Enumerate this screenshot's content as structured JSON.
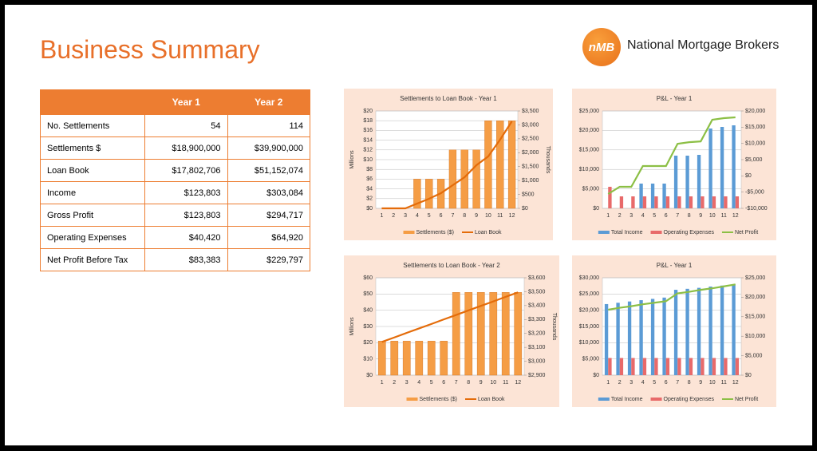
{
  "header": {
    "title": "Business Summary",
    "logo": {
      "mark": "nMB",
      "name": "National Mortgage Brokers"
    }
  },
  "table": {
    "columns": [
      "Year 1",
      "Year 2"
    ],
    "rows": [
      [
        "No. Settlements",
        "54",
        "114"
      ],
      [
        "Settlements $",
        "$18,900,000",
        "$39,900,000"
      ],
      [
        "Loan Book",
        "$17,802,706",
        "$51,152,074"
      ],
      [
        "Income",
        "$123,803",
        "$303,084"
      ],
      [
        "Gross Profit",
        "$123,803",
        "$294,717"
      ],
      [
        "Operating Expenses",
        "$40,420",
        "$64,920"
      ],
      [
        "Net Profit Before Tax",
        "$83,383",
        "$229,797"
      ]
    ]
  },
  "chart_data": [
    {
      "type": "bar_line",
      "title": "Settlements to Loan Book - Year 1",
      "y_label": "Millions",
      "y2_label": "Thousands",
      "grid": true,
      "categories": [
        1,
        2,
        3,
        4,
        5,
        6,
        7,
        8,
        9,
        10,
        11,
        12
      ],
      "series": [
        {
          "name": "Settlements ($)",
          "type": "bar",
          "color": "#f59d45",
          "values": [
            0,
            0,
            0,
            6,
            6,
            6,
            12,
            12,
            12,
            18,
            18,
            18
          ]
        },
        {
          "name": "Loan Book",
          "type": "line",
          "axis": "y2",
          "color": "#e46c0a",
          "values": [
            0,
            0,
            0,
            172,
            344,
            545,
            832,
            1119,
            1549,
            1865,
            2467,
            3127
          ]
        }
      ],
      "ylim": [
        0,
        20
      ],
      "yticks": [
        {
          "value": 0,
          "label": "$0"
        },
        {
          "value": 2,
          "label": "$2"
        },
        {
          "value": 4,
          "label": "$4"
        },
        {
          "value": 6,
          "label": "$6"
        },
        {
          "value": 8,
          "label": "$8"
        },
        {
          "value": 10,
          "label": "$10"
        },
        {
          "value": 12,
          "label": "$12"
        },
        {
          "value": 14,
          "label": "$14"
        },
        {
          "value": 16,
          "label": "$16"
        },
        {
          "value": 18,
          "label": "$18"
        },
        {
          "value": 20,
          "label": "$20"
        }
      ],
      "y2lim": [
        0,
        3500
      ],
      "y2ticks": [
        {
          "value": 0,
          "label": "$0"
        },
        {
          "value": 500,
          "label": "$500"
        },
        {
          "value": 1000,
          "label": "$1,000"
        },
        {
          "value": 1500,
          "label": "$1,500"
        },
        {
          "value": 2000,
          "label": "$2,000"
        },
        {
          "value": 2500,
          "label": "$2,500"
        },
        {
          "value": 3000,
          "label": "$3,000"
        },
        {
          "value": 3500,
          "label": "$3,500"
        }
      ]
    },
    {
      "type": "bar_line",
      "title": "P&L - Year 1",
      "grid": true,
      "categories": [
        1,
        2,
        3,
        4,
        5,
        6,
        7,
        8,
        9,
        10,
        11,
        12
      ],
      "series": [
        {
          "name": "Total Income",
          "type": "bar",
          "color": "#5b9bd5",
          "values": [
            0,
            0,
            0,
            6352,
            6352,
            6352,
            13525,
            13525,
            13730,
            20490,
            20900,
            21311
          ]
        },
        {
          "name": "Operating Expenses",
          "type": "bar",
          "color": "#e86a6a",
          "values": [
            5533,
            3074,
            3074,
            3074,
            3074,
            3074,
            3074,
            3074,
            3074,
            3074,
            3074,
            3074
          ]
        },
        {
          "name": "Net Profit",
          "type": "line",
          "axis": "y2",
          "color": "#8cbf45",
          "values": [
            -5574,
            -3361,
            -3361,
            3030,
            3030,
            3030,
            9885,
            10377,
            10623,
            17295,
            17787,
            18032
          ]
        }
      ],
      "ylim": [
        0,
        25000
      ],
      "yticks": [
        {
          "value": 0,
          "label": "$0"
        },
        {
          "value": 5000,
          "label": "$5,000"
        },
        {
          "value": 10000,
          "label": "$10,000"
        },
        {
          "value": 15000,
          "label": "$15,000"
        },
        {
          "value": 20000,
          "label": "$20,000"
        },
        {
          "value": 25000,
          "label": "$25,000"
        }
      ],
      "y2lim": [
        -10000,
        20000
      ],
      "y2ticks": [
        {
          "value": -10000,
          "label": "-$10,000"
        },
        {
          "value": -5000,
          "label": "-$5,000"
        },
        {
          "value": 0,
          "label": "$0"
        },
        {
          "value": 5000,
          "label": "$5,000"
        },
        {
          "value": 10000,
          "label": "$10,000"
        },
        {
          "value": 15000,
          "label": "$15,000"
        },
        {
          "value": 20000,
          "label": "$20,000"
        }
      ]
    },
    {
      "type": "bar_line",
      "title": "Settlements to Loan Book - Year 2",
      "y_label": "Millions",
      "y2_label": "Thousands",
      "grid": true,
      "categories": [
        1,
        2,
        3,
        4,
        5,
        6,
        7,
        8,
        9,
        10,
        11,
        12
      ],
      "series": [
        {
          "name": "Settlements ($)",
          "type": "bar",
          "color": "#f59d45",
          "values": [
            21,
            21,
            21,
            21,
            21,
            21,
            51,
            51,
            51,
            51,
            51,
            51
          ]
        },
        {
          "name": "Loan Book",
          "type": "line",
          "axis": "y2",
          "color": "#e46c0a",
          "values": [
            3139,
            3171,
            3204,
            3236,
            3268,
            3301,
            3333,
            3366,
            3398,
            3430,
            3463,
            3495
          ]
        }
      ],
      "ylim": [
        0,
        60
      ],
      "yticks": [
        {
          "value": 0,
          "label": "$0"
        },
        {
          "value": 10,
          "label": "$10"
        },
        {
          "value": 20,
          "label": "$20"
        },
        {
          "value": 30,
          "label": "$30"
        },
        {
          "value": 40,
          "label": "$40"
        },
        {
          "value": 50,
          "label": "$50"
        },
        {
          "value": 60,
          "label": "$60"
        }
      ],
      "y2lim": [
        2900,
        3600
      ],
      "y2ticks": [
        {
          "value": 2900,
          "label": "$2,900"
        },
        {
          "value": 3000,
          "label": "$3,000"
        },
        {
          "value": 3100,
          "label": "$3,100"
        },
        {
          "value": 3200,
          "label": "$3,200"
        },
        {
          "value": 3300,
          "label": "$3,300"
        },
        {
          "value": 3400,
          "label": "$3,400"
        },
        {
          "value": 3500,
          "label": "$3,500"
        },
        {
          "value": 3600,
          "label": "$3,600"
        }
      ]
    },
    {
      "type": "bar_line",
      "title": "P&L - Year 1",
      "grid": true,
      "categories": [
        1,
        2,
        3,
        4,
        5,
        6,
        7,
        8,
        9,
        10,
        11,
        12
      ],
      "series": [
        {
          "name": "Total Income",
          "type": "bar",
          "color": "#5b9bd5",
          "values": [
            21900,
            22300,
            22700,
            23100,
            23500,
            23900,
            26300,
            26600,
            26900,
            27300,
            27600,
            28000
          ]
        },
        {
          "name": "Operating Expenses",
          "type": "bar",
          "color": "#e86a6a",
          "values": [
            5294,
            5294,
            5294,
            5294,
            5294,
            5294,
            5294,
            5294,
            5294,
            5294,
            5294,
            5294
          ]
        },
        {
          "name": "Net Profit",
          "type": "line",
          "axis": "y2",
          "color": "#8cbf45",
          "values": [
            16800,
            17300,
            17700,
            18200,
            18600,
            19000,
            21000,
            21400,
            21900,
            22300,
            22800,
            23300
          ]
        }
      ],
      "ylim": [
        0,
        30000
      ],
      "yticks": [
        {
          "value": 0,
          "label": "$0"
        },
        {
          "value": 5000,
          "label": "$5,000"
        },
        {
          "value": 10000,
          "label": "$10,000"
        },
        {
          "value": 15000,
          "label": "$15,000"
        },
        {
          "value": 20000,
          "label": "$20,000"
        },
        {
          "value": 25000,
          "label": "$25,000"
        },
        {
          "value": 30000,
          "label": "$30,000"
        }
      ],
      "y2lim": [
        0,
        25000
      ],
      "y2ticks": [
        {
          "value": 0,
          "label": "$0"
        },
        {
          "value": 5000,
          "label": "$5,000"
        },
        {
          "value": 10000,
          "label": "$10,000"
        },
        {
          "value": 15000,
          "label": "$15,000"
        },
        {
          "value": 20000,
          "label": "$20,000"
        },
        {
          "value": 25000,
          "label": "$25,000"
        }
      ]
    }
  ]
}
